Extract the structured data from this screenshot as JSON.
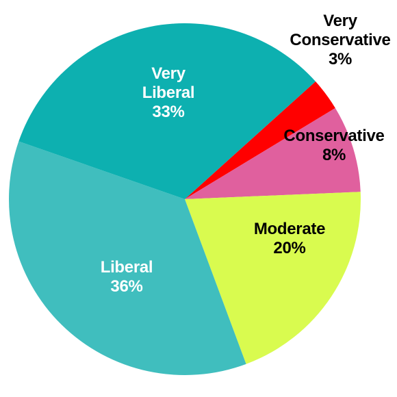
{
  "chart_data": {
    "type": "pie",
    "start_angle_deg": -42,
    "direction": "clockwise",
    "legend": "none",
    "slices": [
      {
        "label_lines": [
          "Very",
          "Conservative"
        ],
        "value_label": "3%",
        "value": 3,
        "color": "#ff0000",
        "text_color": "#000000",
        "label_placement": "outside"
      },
      {
        "label_lines": [
          "Conservative"
        ],
        "value_label": "8%",
        "value": 8,
        "color": "#e0609e",
        "text_color": "#000000",
        "label_placement": "inside"
      },
      {
        "label_lines": [
          "Moderate"
        ],
        "value_label": "20%",
        "value": 20,
        "color": "#d9fb4f",
        "text_color": "#000000",
        "label_placement": "inside"
      },
      {
        "label_lines": [
          "Liberal"
        ],
        "value_label": "36%",
        "value": 36,
        "color": "#40bebe",
        "text_color": "#ffffff",
        "label_placement": "inside"
      },
      {
        "label_lines": [
          "Very",
          "Liberal"
        ],
        "value_label": "33%",
        "value": 33,
        "color": "#0db0b0",
        "text_color": "#ffffff",
        "label_placement": "inside"
      }
    ]
  }
}
